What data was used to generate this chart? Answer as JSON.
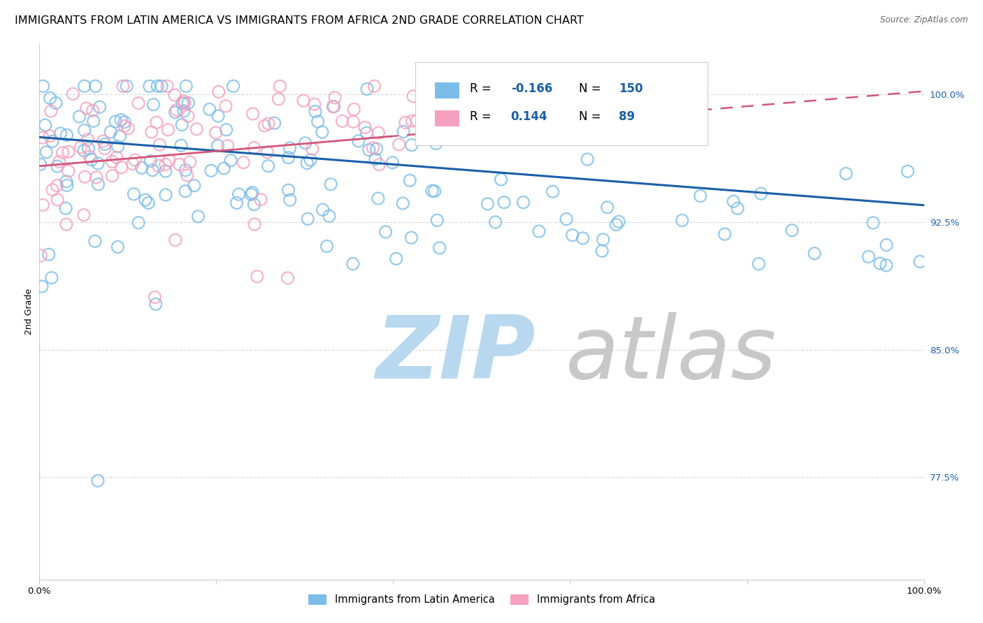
{
  "title": "IMMIGRANTS FROM LATIN AMERICA VS IMMIGRANTS FROM AFRICA 2ND GRADE CORRELATION CHART",
  "source": "Source: ZipAtlas.com",
  "ylabel": "2nd Grade",
  "ytick_labels": [
    "100.0%",
    "92.5%",
    "85.0%",
    "77.5%"
  ],
  "ytick_values": [
    1.0,
    0.925,
    0.85,
    0.775
  ],
  "ymin": 0.715,
  "ymax": 1.03,
  "xmin": 0.0,
  "xmax": 1.0,
  "legend_labels": [
    "Immigrants from Latin America",
    "Immigrants from Africa"
  ],
  "R_blue": -0.166,
  "N_blue": 150,
  "R_pink": 0.144,
  "N_pink": 89,
  "blue_color": "#7bbde8",
  "pink_color": "#f5a0bf",
  "blue_line_color": "#1a5fa8",
  "pink_line_color": "#d4547a",
  "watermark_zip_color": "#b8d8f0",
  "watermark_atlas_color": "#c8c8c8",
  "title_fontsize": 11.5,
  "axis_label_fontsize": 9,
  "tick_fontsize": 9.5,
  "legend_fontsize": 12,
  "blue_scatter_seed": 101,
  "pink_scatter_seed": 55
}
